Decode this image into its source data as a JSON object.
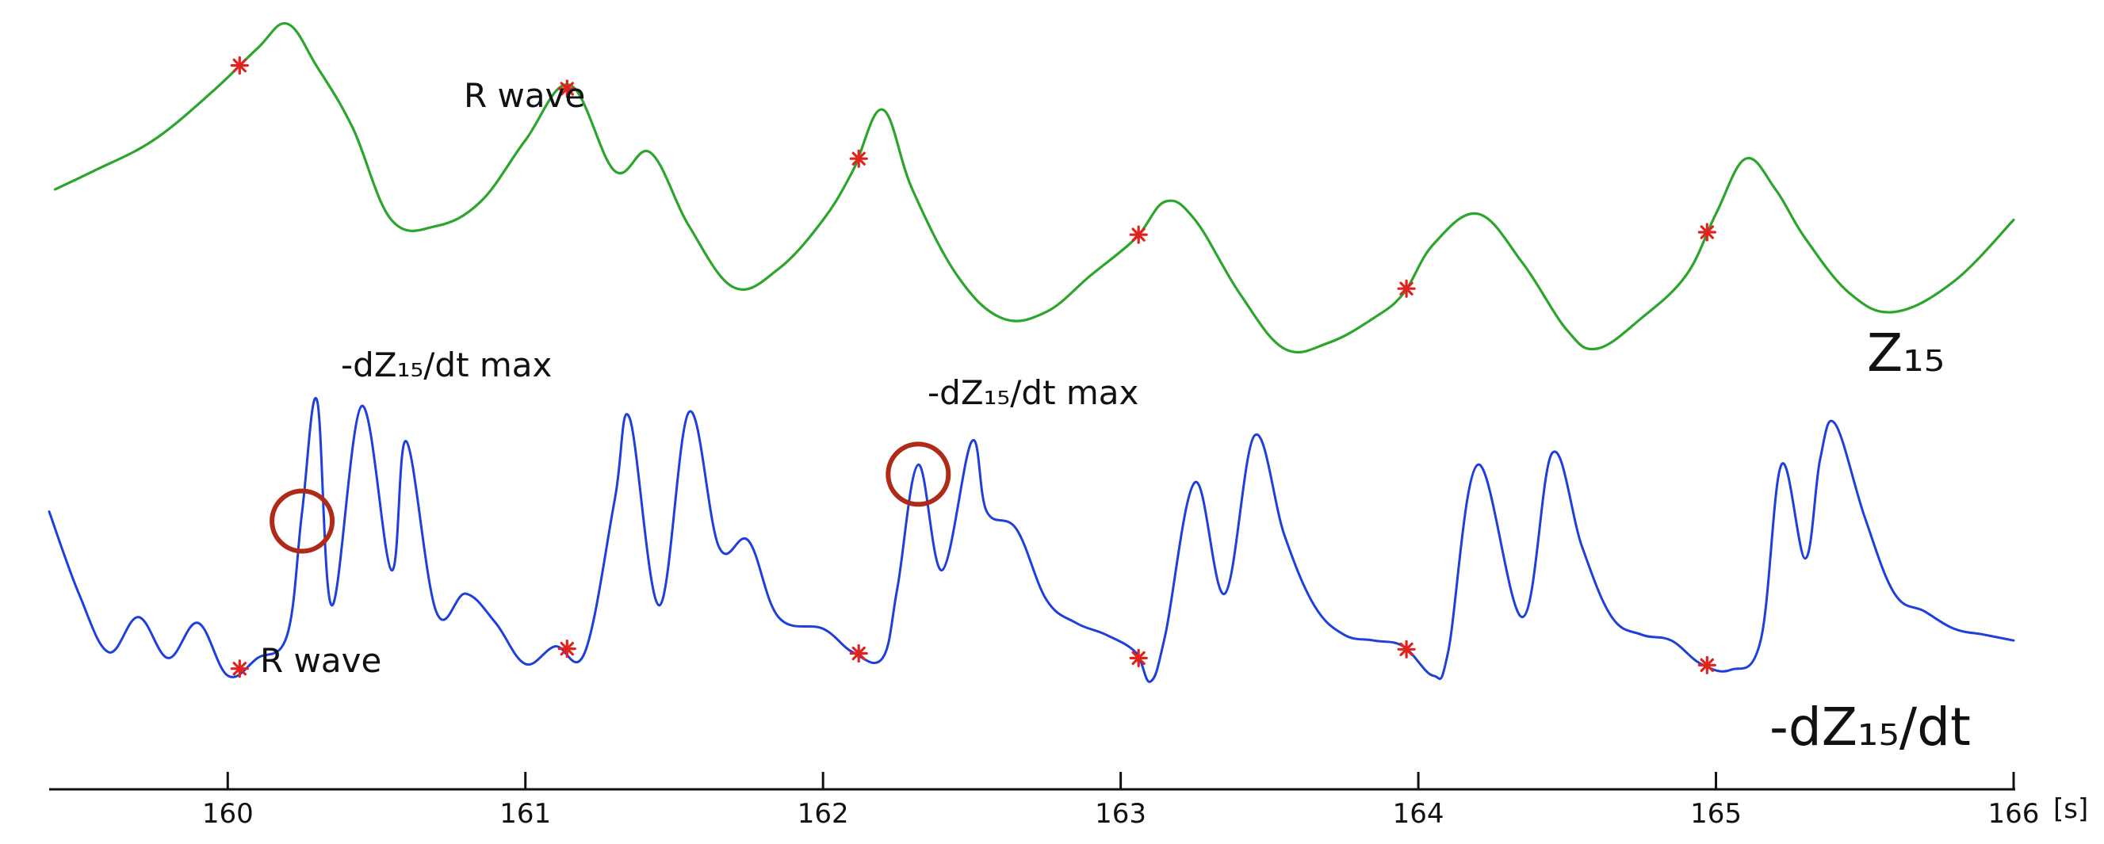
{
  "chart_data": {
    "type": "line",
    "xlabel": "",
    "x_unit": "[s]",
    "xlim": [
      159.4,
      166.0
    ],
    "x_ticks": [
      "160",
      "161",
      "162",
      "163",
      "164",
      "165",
      "166"
    ],
    "grid": false,
    "series": [
      {
        "name": "Z₁₅",
        "color": "#2ca52c",
        "x": [
          159.42,
          159.55,
          159.75,
          159.95,
          160.1,
          160.2,
          160.3,
          160.42,
          160.55,
          160.7,
          160.85,
          161.0,
          161.15,
          161.3,
          161.42,
          161.55,
          161.7,
          161.85,
          162.0,
          162.1,
          162.2,
          162.3,
          162.45,
          162.6,
          162.75,
          162.9,
          163.05,
          163.15,
          163.25,
          163.4,
          163.55,
          163.7,
          163.85,
          163.95,
          164.05,
          164.2,
          164.35,
          164.5,
          164.6,
          164.75,
          164.9,
          165.0,
          165.1,
          165.2,
          165.3,
          165.45,
          165.6,
          165.8,
          166.0
        ],
        "y": [
          0.46,
          0.52,
          0.62,
          0.78,
          0.92,
          1.0,
          0.86,
          0.66,
          0.36,
          0.34,
          0.42,
          0.62,
          0.8,
          0.52,
          0.58,
          0.34,
          0.14,
          0.2,
          0.36,
          0.52,
          0.72,
          0.46,
          0.18,
          0.04,
          0.06,
          0.18,
          0.3,
          0.42,
          0.36,
          0.12,
          -0.06,
          -0.04,
          0.04,
          0.12,
          0.28,
          0.38,
          0.22,
          0.0,
          -0.06,
          0.04,
          0.18,
          0.38,
          0.56,
          0.46,
          0.3,
          0.12,
          0.06,
          0.16,
          0.36
        ]
      },
      {
        "name": "-dZ₁₅/dt",
        "color": "#1e3fdc",
        "x": [
          159.4,
          159.5,
          159.6,
          159.7,
          159.8,
          159.9,
          160.0,
          160.1,
          160.2,
          160.25,
          160.3,
          160.35,
          160.45,
          160.55,
          160.6,
          160.7,
          160.8,
          160.9,
          161.0,
          161.1,
          161.2,
          161.3,
          161.35,
          161.45,
          161.55,
          161.65,
          161.75,
          161.85,
          162.0,
          162.1,
          162.2,
          162.25,
          162.32,
          162.4,
          162.5,
          162.55,
          162.65,
          162.75,
          162.85,
          162.95,
          163.05,
          163.1,
          163.15,
          163.25,
          163.35,
          163.45,
          163.55,
          163.65,
          163.75,
          163.85,
          163.95,
          164.05,
          164.1,
          164.2,
          164.35,
          164.45,
          164.55,
          164.65,
          164.75,
          164.85,
          164.95,
          165.05,
          165.15,
          165.22,
          165.3,
          165.35,
          165.4,
          165.5,
          165.6,
          165.7,
          165.8,
          165.9,
          166.0
        ],
        "y": [
          0.62,
          0.34,
          0.14,
          0.26,
          0.12,
          0.24,
          0.06,
          0.12,
          0.2,
          0.62,
          1.0,
          0.3,
          0.98,
          0.42,
          0.86,
          0.28,
          0.34,
          0.24,
          0.1,
          0.16,
          0.14,
          0.66,
          0.94,
          0.3,
          0.96,
          0.5,
          0.52,
          0.26,
          0.22,
          0.14,
          0.12,
          0.36,
          0.78,
          0.42,
          0.86,
          0.62,
          0.56,
          0.32,
          0.24,
          0.2,
          0.14,
          0.04,
          0.2,
          0.72,
          0.34,
          0.88,
          0.54,
          0.3,
          0.2,
          0.18,
          0.16,
          0.06,
          0.14,
          0.78,
          0.26,
          0.82,
          0.5,
          0.26,
          0.2,
          0.18,
          0.1,
          0.08,
          0.18,
          0.78,
          0.46,
          0.8,
          0.92,
          0.6,
          0.34,
          0.28,
          0.22,
          0.2,
          0.18
        ]
      }
    ],
    "markers": {
      "name": "R wave",
      "color": "#e0231e",
      "x": [
        160.04,
        161.14,
        162.12,
        163.06,
        163.96,
        164.97
      ]
    },
    "annotations": [
      {
        "text": "R wave",
        "series": "Z₁₅",
        "x": 161.14
      },
      {
        "text": "R wave",
        "series": "-dZ₁₅/dt",
        "x": 160.04
      },
      {
        "text": "-dZ₁₅/dt max",
        "series": "-dZ₁₅/dt",
        "x": 160.25
      },
      {
        "text": "-dZ₁₅/dt max",
        "series": "-dZ₁₅/dt",
        "x": 162.32
      }
    ],
    "circle_color": "#b02a1a"
  }
}
